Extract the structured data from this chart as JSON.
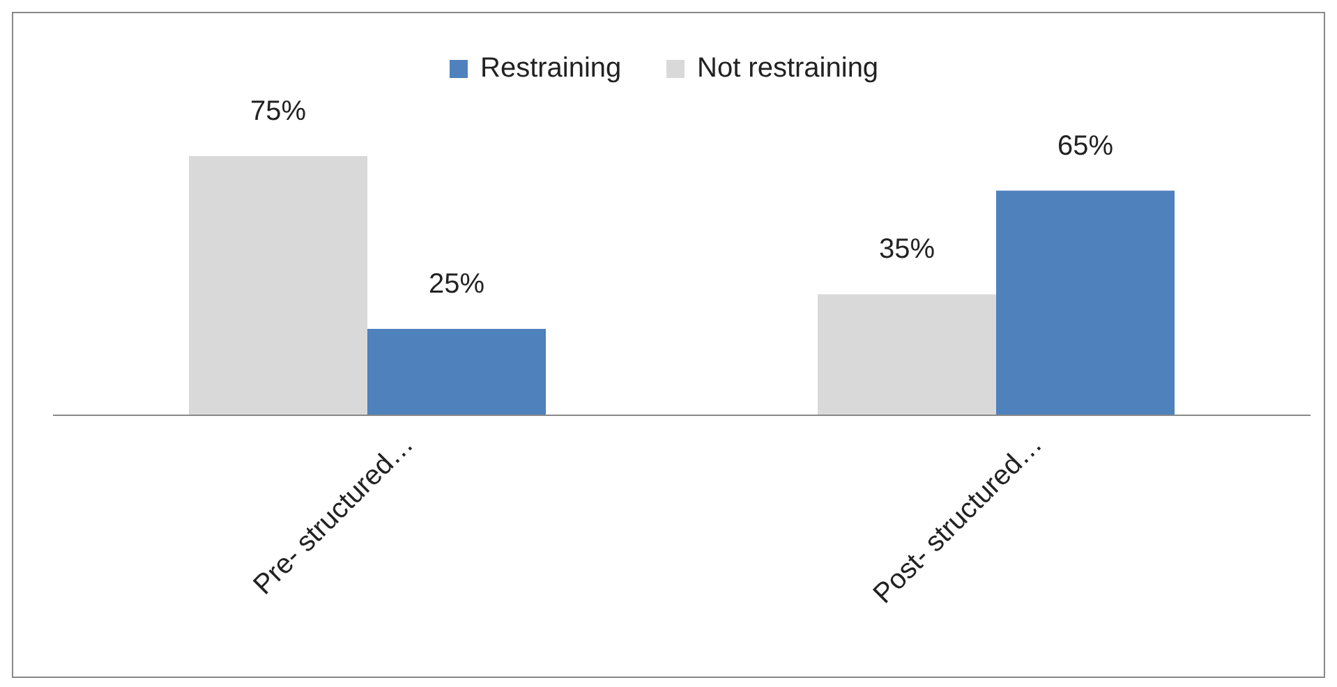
{
  "chart_data": {
    "type": "bar",
    "categories": [
      "Pre- structured…",
      "Post- structured…"
    ],
    "series": [
      {
        "name": "Not restraining",
        "color": "#d9d9d9",
        "values": [
          75,
          35
        ],
        "value_labels": [
          "75%",
          "35%"
        ]
      },
      {
        "name": "Restraining",
        "color": "#4f81bd",
        "values": [
          25,
          65
        ],
        "value_labels": [
          "25%",
          "65%"
        ]
      }
    ],
    "legend": "top",
    "grid": false
  }
}
